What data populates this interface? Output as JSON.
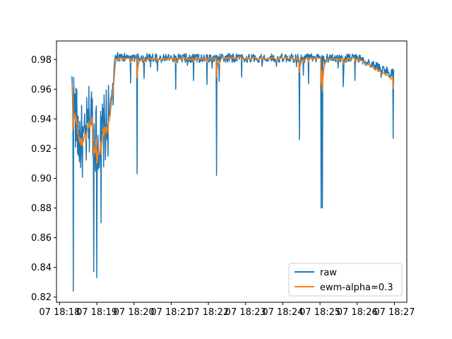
{
  "chart_data": {
    "type": "line",
    "title": "",
    "xlabel": "",
    "ylabel": "",
    "x_ticks": [
      "07 18:18",
      "07 18:19",
      "07 18:20",
      "07 18:21",
      "07 18:22",
      "07 18:23",
      "07 18:24",
      "07 18:25",
      "07 18:26",
      "07 18:27"
    ],
    "xlim": [
      "07 18:17:55",
      "07 18:27:20"
    ],
    "y_ticks": [
      "0.82",
      "0.84",
      "0.86",
      "0.88",
      "0.90",
      "0.92",
      "0.94",
      "0.96",
      "0.98"
    ],
    "ylim": [
      0.8165,
      0.9925
    ],
    "legend": {
      "placement": "lower right"
    },
    "series": [
      {
        "name": "raw",
        "color": "#1f77b4",
        "sampling": "irregular samples every ~0.7 s from 07 18:18:20 to 07 18:27:00",
        "x": [
          "07 18:18:20",
          "07 18:18:30",
          "07 18:18:40",
          "07 18:18:50",
          "07 18:19:00",
          "07 18:19:10",
          "07 18:19:20",
          "07 18:19:30",
          "07 18:20:00",
          "07 18:20:30",
          "07 18:21:00",
          "07 18:22:00",
          "07 18:23:00",
          "07 18:24:00",
          "07 18:25:00",
          "07 18:26:00",
          "07 18:27:00"
        ],
        "y": [
          0.957,
          0.93,
          0.92,
          0.945,
          0.925,
          0.93,
          0.94,
          0.982,
          0.981,
          0.981,
          0.981,
          0.981,
          0.981,
          0.981,
          0.981,
          0.981,
          0.97
        ],
        "notable_dips": [
          {
            "x": "07 18:18:22",
            "y": 0.824
          },
          {
            "x": "07 18:18:55",
            "y": 0.837
          },
          {
            "x": "07 18:19:00",
            "y": 0.833
          },
          {
            "x": "07 18:19:07",
            "y": 0.87
          },
          {
            "x": "07 18:20:05",
            "y": 0.903
          },
          {
            "x": "07 18:22:13",
            "y": 0.902
          },
          {
            "x": "07 18:24:27",
            "y": 0.926
          },
          {
            "x": "07 18:25:02",
            "y": 0.88
          },
          {
            "x": "07 18:25:04",
            "y": 0.88
          },
          {
            "x": "07 18:26:58",
            "y": 0.927
          }
        ]
      },
      {
        "name": "ewm-alpha=0.3",
        "color": "#ff7f0e",
        "description": "exponentially weighted moving average (alpha = 0.3) of the raw series",
        "x": [
          "07 18:18:20",
          "07 18:18:30",
          "07 18:18:40",
          "07 18:18:50",
          "07 18:19:00",
          "07 18:19:10",
          "07 18:19:20",
          "07 18:19:30",
          "07 18:20:00",
          "07 18:21:00",
          "07 18:22:00",
          "07 18:23:00",
          "07 18:24:00",
          "07 18:25:00",
          "07 18:26:00",
          "07 18:27:00"
        ],
        "y": [
          0.958,
          0.925,
          0.922,
          0.935,
          0.922,
          0.928,
          0.935,
          0.98,
          0.98,
          0.98,
          0.981,
          0.981,
          0.981,
          0.98,
          0.98,
          0.962
        ]
      }
    ]
  }
}
